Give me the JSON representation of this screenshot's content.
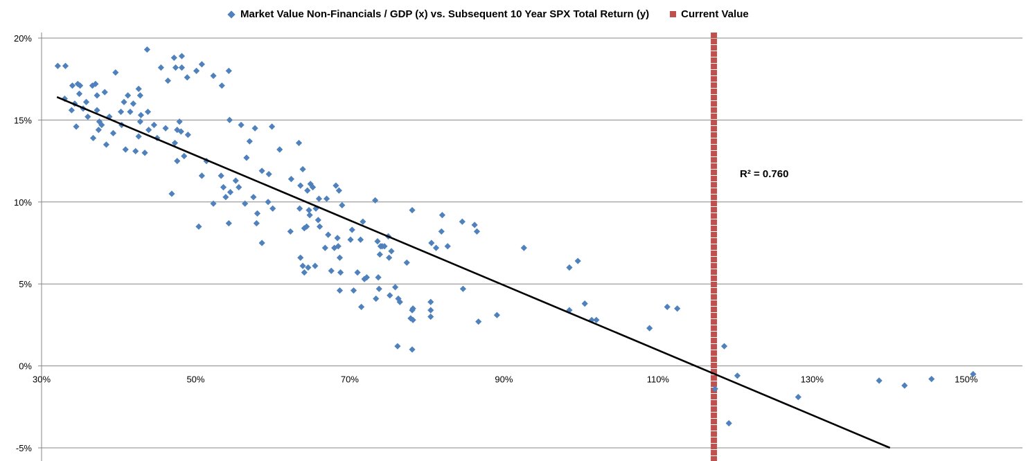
{
  "chart_data": {
    "type": "scatter",
    "title": "",
    "legend": [
      {
        "label": "Market Value Non-Financials / GDP (x) vs. Subsequent 10 Year SPX Total Return (y)",
        "marker": "diamond",
        "color": "#4F81BD"
      },
      {
        "label": "Current Value",
        "marker": "square",
        "color": "#C0504D"
      }
    ],
    "legend_position": "top",
    "xlim": [
      30,
      157.3
    ],
    "ylim": [
      -5,
      20
    ],
    "x_ticks": [
      30,
      50,
      70,
      90,
      110,
      130,
      150
    ],
    "x_tick_labels": [
      "30%",
      "50%",
      "70%",
      "90%",
      "110%",
      "130%",
      "150%"
    ],
    "y_ticks": [
      -5,
      0,
      5,
      10,
      15,
      20
    ],
    "y_tick_labels": [
      "-5%",
      "0%",
      "5%",
      "10%",
      "15%",
      "20%"
    ],
    "grid": "horizontal",
    "current_value_x": 117.3,
    "trendline": {
      "slope": -0.198,
      "intercept": 22.74,
      "x_start": 32,
      "r2_label": "R² = 0.760"
    },
    "points": [
      [
        32.1,
        18.3
      ],
      [
        33.1,
        18.3
      ],
      [
        33.0,
        16.3
      ],
      [
        34.0,
        17.1
      ],
      [
        33.9,
        15.6
      ],
      [
        34.3,
        16.0
      ],
      [
        34.5,
        14.6
      ],
      [
        34.7,
        17.2
      ],
      [
        34.9,
        16.6
      ],
      [
        35.0,
        17.1
      ],
      [
        35.4,
        15.7
      ],
      [
        35.8,
        16.1
      ],
      [
        36.0,
        15.2
      ],
      [
        36.6,
        17.1
      ],
      [
        36.7,
        13.9
      ],
      [
        37.0,
        17.2
      ],
      [
        37.2,
        16.5
      ],
      [
        37.2,
        15.6
      ],
      [
        37.4,
        14.4
      ],
      [
        37.5,
        14.9
      ],
      [
        37.8,
        14.7
      ],
      [
        38.2,
        16.7
      ],
      [
        38.4,
        13.5
      ],
      [
        38.8,
        15.2
      ],
      [
        39.3,
        14.2
      ],
      [
        39.6,
        17.9
      ],
      [
        40.3,
        15.5
      ],
      [
        40.4,
        14.7
      ],
      [
        40.7,
        16.1
      ],
      [
        40.9,
        13.2
      ],
      [
        41.2,
        16.5
      ],
      [
        41.5,
        15.5
      ],
      [
        41.9,
        16.0
      ],
      [
        42.2,
        13.1
      ],
      [
        42.6,
        14.0
      ],
      [
        42.6,
        16.9
      ],
      [
        42.8,
        16.5
      ],
      [
        42.9,
        15.3
      ],
      [
        42.8,
        14.9
      ],
      [
        43.4,
        13.0
      ],
      [
        43.7,
        19.3
      ],
      [
        43.8,
        15.5
      ],
      [
        43.9,
        14.4
      ],
      [
        44.6,
        14.7
      ],
      [
        45.0,
        13.9
      ],
      [
        45.5,
        18.2
      ],
      [
        46.1,
        14.5
      ],
      [
        46.4,
        17.4
      ],
      [
        46.9,
        10.5
      ],
      [
        47.2,
        18.8
      ],
      [
        47.3,
        13.6
      ],
      [
        47.4,
        18.2
      ],
      [
        47.6,
        14.4
      ],
      [
        47.6,
        12.5
      ],
      [
        47.9,
        14.9
      ],
      [
        48.1,
        14.3
      ],
      [
        48.2,
        18.9
      ],
      [
        48.2,
        18.2
      ],
      [
        48.5,
        12.8
      ],
      [
        48.9,
        17.6
      ],
      [
        49.0,
        14.1
      ],
      [
        50.4,
        8.5
      ],
      [
        50.1,
        18.0
      ],
      [
        50.8,
        18.4
      ],
      [
        50.8,
        11.6
      ],
      [
        51.4,
        12.5
      ],
      [
        52.3,
        9.9
      ],
      [
        52.3,
        17.7
      ],
      [
        53.3,
        11.6
      ],
      [
        53.4,
        17.1
      ],
      [
        53.6,
        10.9
      ],
      [
        53.9,
        10.3
      ],
      [
        54.3,
        18.0
      ],
      [
        54.3,
        8.7
      ],
      [
        54.5,
        10.6
      ],
      [
        54.4,
        15.0
      ],
      [
        55.2,
        11.3
      ],
      [
        55.6,
        10.9
      ],
      [
        55.9,
        14.7
      ],
      [
        56.4,
        9.9
      ],
      [
        56.6,
        12.7
      ],
      [
        57.0,
        13.7
      ],
      [
        57.5,
        10.3
      ],
      [
        57.7,
        14.5
      ],
      [
        57.9,
        8.7
      ],
      [
        58.0,
        9.3
      ],
      [
        58.6,
        7.5
      ],
      [
        58.6,
        11.9
      ],
      [
        59.4,
        10.0
      ],
      [
        59.5,
        11.7
      ],
      [
        59.9,
        14.6
      ],
      [
        60.0,
        9.6
      ],
      [
        60.9,
        13.2
      ],
      [
        62.3,
        8.2
      ],
      [
        62.4,
        11.4
      ],
      [
        63.4,
        13.6
      ],
      [
        63.5,
        9.6
      ],
      [
        63.6,
        11.0
      ],
      [
        63.6,
        6.6
      ],
      [
        63.9,
        6.1
      ],
      [
        63.9,
        12.0
      ],
      [
        64.1,
        8.4
      ],
      [
        64.1,
        5.7
      ],
      [
        64.4,
        8.5
      ],
      [
        64.5,
        10.7
      ],
      [
        64.6,
        6.0
      ],
      [
        64.7,
        9.5
      ],
      [
        64.8,
        9.2
      ],
      [
        64.9,
        11.1
      ],
      [
        65.2,
        10.9
      ],
      [
        65.5,
        6.1
      ],
      [
        65.6,
        9.6
      ],
      [
        65.9,
        8.9
      ],
      [
        66.0,
        10.2
      ],
      [
        66.1,
        8.5
      ],
      [
        66.8,
        7.2
      ],
      [
        67.0,
        10.2
      ],
      [
        67.2,
        8.0
      ],
      [
        67.6,
        5.8
      ],
      [
        68.0,
        7.2
      ],
      [
        68.2,
        11.0
      ],
      [
        68.5,
        7.3
      ],
      [
        68.4,
        7.8
      ],
      [
        68.6,
        10.7
      ],
      [
        68.7,
        6.6
      ],
      [
        68.7,
        4.6
      ],
      [
        68.8,
        5.7
      ],
      [
        69.0,
        9.8
      ],
      [
        70.1,
        7.7
      ],
      [
        70.3,
        8.3
      ],
      [
        70.5,
        4.6
      ],
      [
        71.0,
        5.7
      ],
      [
        71.4,
        7.7
      ],
      [
        71.5,
        3.6
      ],
      [
        71.7,
        8.8
      ],
      [
        71.9,
        5.3
      ],
      [
        72.2,
        5.4
      ],
      [
        73.3,
        10.1
      ],
      [
        73.4,
        4.1
      ],
      [
        73.6,
        7.6
      ],
      [
        73.7,
        5.4
      ],
      [
        73.8,
        4.7
      ],
      [
        73.9,
        6.8
      ],
      [
        74.0,
        7.3
      ],
      [
        74.2,
        7.3
      ],
      [
        74.5,
        7.3
      ],
      [
        75.0,
        7.9
      ],
      [
        75.1,
        6.6
      ],
      [
        75.2,
        4.3
      ],
      [
        75.4,
        7.0
      ],
      [
        75.9,
        4.8
      ],
      [
        76.2,
        1.2
      ],
      [
        76.3,
        4.1
      ],
      [
        76.5,
        3.9
      ],
      [
        77.4,
        6.3
      ],
      [
        77.9,
        2.9
      ],
      [
        78.1,
        3.4
      ],
      [
        78.1,
        1.0
      ],
      [
        78.1,
        9.5
      ],
      [
        78.2,
        2.8
      ],
      [
        78.2,
        3.5
      ],
      [
        80.5,
        3.9
      ],
      [
        80.5,
        3.4
      ],
      [
        80.5,
        3.0
      ],
      [
        80.6,
        7.5
      ],
      [
        81.2,
        7.2
      ],
      [
        81.9,
        8.2
      ],
      [
        82.0,
        9.2
      ],
      [
        82.7,
        7.3
      ],
      [
        84.6,
        8.8
      ],
      [
        84.7,
        4.7
      ],
      [
        86.2,
        8.6
      ],
      [
        86.5,
        8.2
      ],
      [
        86.7,
        2.7
      ],
      [
        89.1,
        3.1
      ],
      [
        92.6,
        7.2
      ],
      [
        98.5,
        6.0
      ],
      [
        98.5,
        3.4
      ],
      [
        99.6,
        6.4
      ],
      [
        100.5,
        3.8
      ],
      [
        101.4,
        2.8
      ],
      [
        102.0,
        2.8
      ],
      [
        108.9,
        2.3
      ],
      [
        111.2,
        3.6
      ],
      [
        112.5,
        3.5
      ],
      [
        117.4,
        -1.4
      ],
      [
        118.6,
        1.2
      ],
      [
        119.2,
        -3.5
      ],
      [
        120.3,
        -0.6
      ],
      [
        128.2,
        -1.9
      ],
      [
        138.7,
        -0.9
      ],
      [
        142.0,
        -1.2
      ],
      [
        145.5,
        -0.8
      ],
      [
        150.9,
        -0.5
      ]
    ]
  }
}
